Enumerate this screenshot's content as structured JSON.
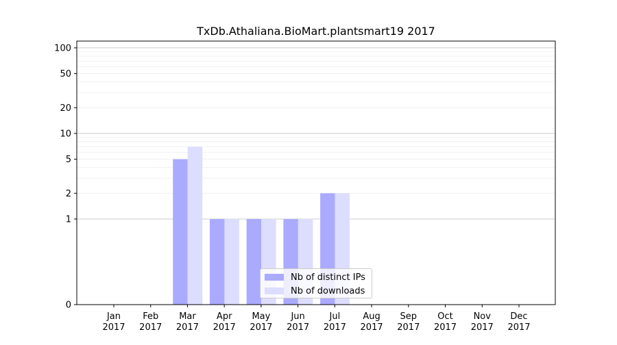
{
  "chart_data": {
    "type": "bar",
    "title": "TxDb.Athaliana.BioMart.plantsmart19 2017",
    "xlabel": "",
    "ylabel": "",
    "yscale": "symlog",
    "ylim": [
      0,
      120
    ],
    "yticks": [
      0,
      1,
      2,
      5,
      10,
      20,
      50,
      100
    ],
    "ytick_labels": [
      "0",
      "1",
      "2",
      "5",
      "10",
      "20",
      "50",
      "100"
    ],
    "categories": [
      "Jan\n2017",
      "Feb\n2017",
      "Mar\n2017",
      "Apr\n2017",
      "May\n2017",
      "Jun\n2017",
      "Jul\n2017",
      "Aug\n2017",
      "Sep\n2017",
      "Oct\n2017",
      "Nov\n2017",
      "Dec\n2017"
    ],
    "series": [
      {
        "name": "Nb of distinct IPs",
        "color": "#aaaaff",
        "values": [
          0,
          0,
          5,
          1,
          1,
          1,
          2,
          0,
          0,
          0,
          0,
          0
        ]
      },
      {
        "name": "Nb of downloads",
        "color": "#ddddff",
        "values": [
          0,
          0,
          7,
          1,
          1,
          1,
          2,
          0,
          0,
          0,
          0,
          0
        ]
      }
    ],
    "grid": true,
    "legend_position": "lower center"
  }
}
